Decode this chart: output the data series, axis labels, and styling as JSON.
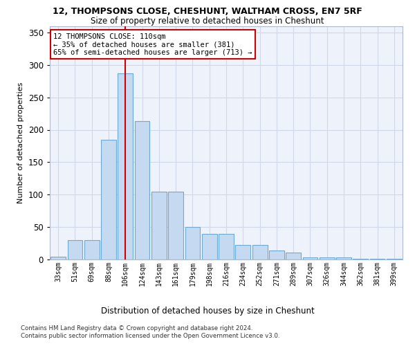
{
  "title1": "12, THOMPSONS CLOSE, CHESHUNT, WALTHAM CROSS, EN7 5RF",
  "title2": "Size of property relative to detached houses in Cheshunt",
  "xlabel": "Distribution of detached houses by size in Cheshunt",
  "ylabel": "Number of detached properties",
  "categories": [
    "33sqm",
    "51sqm",
    "69sqm",
    "88sqm",
    "106sqm",
    "124sqm",
    "143sqm",
    "161sqm",
    "179sqm",
    "198sqm",
    "216sqm",
    "234sqm",
    "252sqm",
    "271sqm",
    "289sqm",
    "307sqm",
    "326sqm",
    "344sqm",
    "362sqm",
    "381sqm",
    "399sqm"
  ],
  "values": [
    4,
    30,
    30,
    185,
    287,
    213,
    105,
    105,
    50,
    40,
    40,
    22,
    22,
    14,
    11,
    3,
    3,
    3,
    1,
    1,
    1
  ],
  "bar_color": "#c5d9f0",
  "bar_edge_color": "#6aaad4",
  "background_color": "#eef2fa",
  "grid_color": "#d0d8e8",
  "annotation_text": "12 THOMPSONS CLOSE: 110sqm\n← 35% of detached houses are smaller (381)\n65% of semi-detached houses are larger (713) →",
  "annotation_box_color": "#ffffff",
  "annotation_box_edge": "#cc0000",
  "vline_color": "#cc0000",
  "ylim": [
    0,
    360
  ],
  "yticks": [
    0,
    50,
    100,
    150,
    200,
    250,
    300,
    350
  ],
  "footer1": "Contains HM Land Registry data © Crown copyright and database right 2024.",
  "footer2": "Contains public sector information licensed under the Open Government Licence v3.0."
}
